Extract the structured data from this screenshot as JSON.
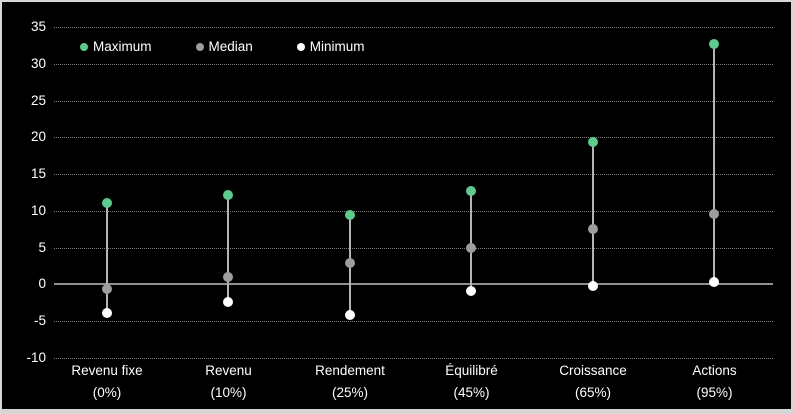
{
  "chart_data": {
    "type": "scatter",
    "subtype": "vertical range with high / median / low markers",
    "title": "",
    "xlabel": "",
    "ylabel": "",
    "categories": [
      {
        "label": "Revenu fixe",
        "sublabel": "(0%)"
      },
      {
        "label": "Revenu",
        "sublabel": "(10%)"
      },
      {
        "label": "Rendement",
        "sublabel": "(25%)"
      },
      {
        "label": "Équilibré",
        "sublabel": "(45%)"
      },
      {
        "label": "Croissance",
        "sublabel": "(65%)"
      },
      {
        "label": "Actions",
        "sublabel": "(95%)"
      }
    ],
    "series": [
      {
        "name": "Maximum",
        "color": "#5ecb8d",
        "values": [
          11.1,
          12.1,
          9.5,
          12.7,
          19.3,
          32.7
        ]
      },
      {
        "name": "Median",
        "color": "#9d9d9d",
        "values": [
          -0.6,
          1.0,
          2.9,
          5.0,
          7.5,
          9.6
        ]
      },
      {
        "name": "Minimum",
        "color": "#ffffff",
        "values": [
          -3.9,
          -2.4,
          -4.1,
          -0.9,
          -0.2,
          0.4
        ]
      }
    ],
    "yaxis": {
      "min": -10,
      "max": 35,
      "step": 5,
      "ticks": [
        "35",
        "30",
        "25",
        "20",
        "15",
        "10",
        "5",
        "0",
        "-5",
        "-10"
      ]
    },
    "legend": {
      "position": "top-left",
      "items": [
        "Maximum",
        "Median",
        "Minimum"
      ]
    },
    "grid": "horizontal dotted, solid zero axis",
    "colors": {
      "background": "#000000",
      "frame_border": "#d6d6d6",
      "gridline": "#7d7d7d",
      "zero_axis": "#8f8f8f",
      "stem": "#b3b3b3",
      "text": "#ffffff"
    }
  }
}
